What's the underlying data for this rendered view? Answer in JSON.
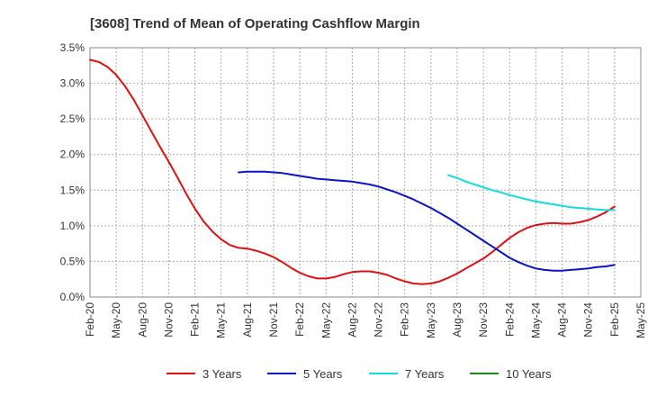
{
  "chart_data": {
    "type": "line",
    "title": "[3608]  Trend of Mean of Operating Cashflow Margin",
    "xlabel": "",
    "ylabel": "",
    "ylim": [
      0,
      3.5
    ],
    "yticks": [
      0,
      0.5,
      1.0,
      1.5,
      2.0,
      2.5,
      3.0,
      3.5
    ],
    "ytick_labels": [
      "0.0%",
      "0.5%",
      "1.0%",
      "1.5%",
      "2.0%",
      "2.5%",
      "3.0%",
      "3.5%"
    ],
    "xtick_labels": [
      "Feb-20",
      "May-20",
      "Aug-20",
      "Nov-20",
      "Feb-21",
      "May-21",
      "Aug-21",
      "Nov-21",
      "Feb-22",
      "May-22",
      "Aug-22",
      "Nov-22",
      "Feb-23",
      "May-23",
      "Aug-23",
      "Nov-23",
      "Feb-24",
      "May-24",
      "Aug-24",
      "Nov-24",
      "Feb-25",
      "May-25"
    ],
    "grid": true,
    "legend_position": "bottom",
    "series": [
      {
        "name": "3 Years",
        "color": "#dd1111",
        "points": [
          [
            "Feb-20",
            3.33
          ],
          [
            "Mar-20",
            3.3
          ],
          [
            "Apr-20",
            3.23
          ],
          [
            "May-20",
            3.12
          ],
          [
            "Jun-20",
            2.96
          ],
          [
            "Jul-20",
            2.77
          ],
          [
            "Aug-20",
            2.55
          ],
          [
            "Sep-20",
            2.33
          ],
          [
            "Oct-20",
            2.11
          ],
          [
            "Nov-20",
            1.9
          ],
          [
            "Dec-20",
            1.68
          ],
          [
            "Jan-21",
            1.45
          ],
          [
            "Feb-21",
            1.24
          ],
          [
            "Mar-21",
            1.06
          ],
          [
            "Apr-21",
            0.92
          ],
          [
            "May-21",
            0.81
          ],
          [
            "Jun-21",
            0.73
          ],
          [
            "Jul-21",
            0.69
          ],
          [
            "Aug-21",
            0.68
          ],
          [
            "Sep-21",
            0.65
          ],
          [
            "Oct-21",
            0.61
          ],
          [
            "Nov-21",
            0.56
          ],
          [
            "Dec-21",
            0.49
          ],
          [
            "Jan-22",
            0.41
          ],
          [
            "Feb-22",
            0.34
          ],
          [
            "Mar-22",
            0.29
          ],
          [
            "Apr-22",
            0.26
          ],
          [
            "May-22",
            0.26
          ],
          [
            "Jun-22",
            0.28
          ],
          [
            "Jul-22",
            0.32
          ],
          [
            "Aug-22",
            0.35
          ],
          [
            "Sep-22",
            0.36
          ],
          [
            "Oct-22",
            0.36
          ],
          [
            "Nov-22",
            0.34
          ],
          [
            "Dec-22",
            0.31
          ],
          [
            "Jan-23",
            0.26
          ],
          [
            "Feb-23",
            0.22
          ],
          [
            "Mar-23",
            0.19
          ],
          [
            "Apr-23",
            0.18
          ],
          [
            "May-23",
            0.19
          ],
          [
            "Jun-23",
            0.22
          ],
          [
            "Jul-23",
            0.27
          ],
          [
            "Aug-23",
            0.33
          ],
          [
            "Sep-23",
            0.4
          ],
          [
            "Oct-23",
            0.47
          ],
          [
            "Nov-23",
            0.54
          ],
          [
            "Dec-23",
            0.63
          ],
          [
            "Jan-24",
            0.73
          ],
          [
            "Feb-24",
            0.83
          ],
          [
            "Mar-24",
            0.91
          ],
          [
            "Apr-24",
            0.97
          ],
          [
            "May-24",
            1.01
          ],
          [
            "Jun-24",
            1.03
          ],
          [
            "Jul-24",
            1.04
          ],
          [
            "Aug-24",
            1.03
          ],
          [
            "Sep-24",
            1.03
          ],
          [
            "Oct-24",
            1.05
          ],
          [
            "Nov-24",
            1.08
          ],
          [
            "Dec-24",
            1.13
          ],
          [
            "Jan-25",
            1.19
          ],
          [
            "Feb-25",
            1.27
          ]
        ]
      },
      {
        "name": "5 Years",
        "color": "#0a14c8",
        "points": [
          [
            "Jul-21",
            1.75
          ],
          [
            "Aug-21",
            1.76
          ],
          [
            "Sep-21",
            1.76
          ],
          [
            "Oct-21",
            1.76
          ],
          [
            "Nov-21",
            1.75
          ],
          [
            "Dec-21",
            1.74
          ],
          [
            "Jan-22",
            1.72
          ],
          [
            "Feb-22",
            1.7
          ],
          [
            "Mar-22",
            1.68
          ],
          [
            "Apr-22",
            1.66
          ],
          [
            "May-22",
            1.65
          ],
          [
            "Jun-22",
            1.64
          ],
          [
            "Jul-22",
            1.63
          ],
          [
            "Aug-22",
            1.62
          ],
          [
            "Sep-22",
            1.6
          ],
          [
            "Oct-22",
            1.58
          ],
          [
            "Nov-22",
            1.55
          ],
          [
            "Dec-22",
            1.51
          ],
          [
            "Jan-23",
            1.47
          ],
          [
            "Feb-23",
            1.42
          ],
          [
            "Mar-23",
            1.37
          ],
          [
            "Apr-23",
            1.31
          ],
          [
            "May-23",
            1.25
          ],
          [
            "Jun-23",
            1.18
          ],
          [
            "Jul-23",
            1.11
          ],
          [
            "Aug-23",
            1.03
          ],
          [
            "Sep-23",
            0.95
          ],
          [
            "Oct-23",
            0.87
          ],
          [
            "Nov-23",
            0.79
          ],
          [
            "Dec-23",
            0.71
          ],
          [
            "Jan-24",
            0.63
          ],
          [
            "Feb-24",
            0.55
          ],
          [
            "Mar-24",
            0.49
          ],
          [
            "Apr-24",
            0.44
          ],
          [
            "May-24",
            0.4
          ],
          [
            "Jun-24",
            0.38
          ],
          [
            "Jul-24",
            0.37
          ],
          [
            "Aug-24",
            0.37
          ],
          [
            "Sep-24",
            0.38
          ],
          [
            "Oct-24",
            0.39
          ],
          [
            "Nov-24",
            0.4
          ],
          [
            "Dec-24",
            0.42
          ],
          [
            "Jan-25",
            0.43
          ],
          [
            "Feb-25",
            0.45
          ]
        ]
      },
      {
        "name": "7 Years",
        "color": "#11dddd",
        "points": [
          [
            "Jul-23",
            1.71
          ],
          [
            "Aug-23",
            1.67
          ],
          [
            "Sep-23",
            1.62
          ],
          [
            "Oct-23",
            1.58
          ],
          [
            "Nov-23",
            1.54
          ],
          [
            "Dec-23",
            1.5
          ],
          [
            "Jan-24",
            1.47
          ],
          [
            "Feb-24",
            1.43
          ],
          [
            "Mar-24",
            1.4
          ],
          [
            "Apr-24",
            1.37
          ],
          [
            "May-24",
            1.34
          ],
          [
            "Jun-24",
            1.32
          ],
          [
            "Jul-24",
            1.3
          ],
          [
            "Aug-24",
            1.28
          ],
          [
            "Sep-24",
            1.26
          ],
          [
            "Oct-24",
            1.25
          ],
          [
            "Nov-24",
            1.24
          ],
          [
            "Dec-24",
            1.23
          ],
          [
            "Jan-25",
            1.22
          ],
          [
            "Feb-25",
            1.22
          ]
        ]
      },
      {
        "name": "10 Years",
        "color": "#1a8a1a",
        "points": []
      }
    ]
  }
}
